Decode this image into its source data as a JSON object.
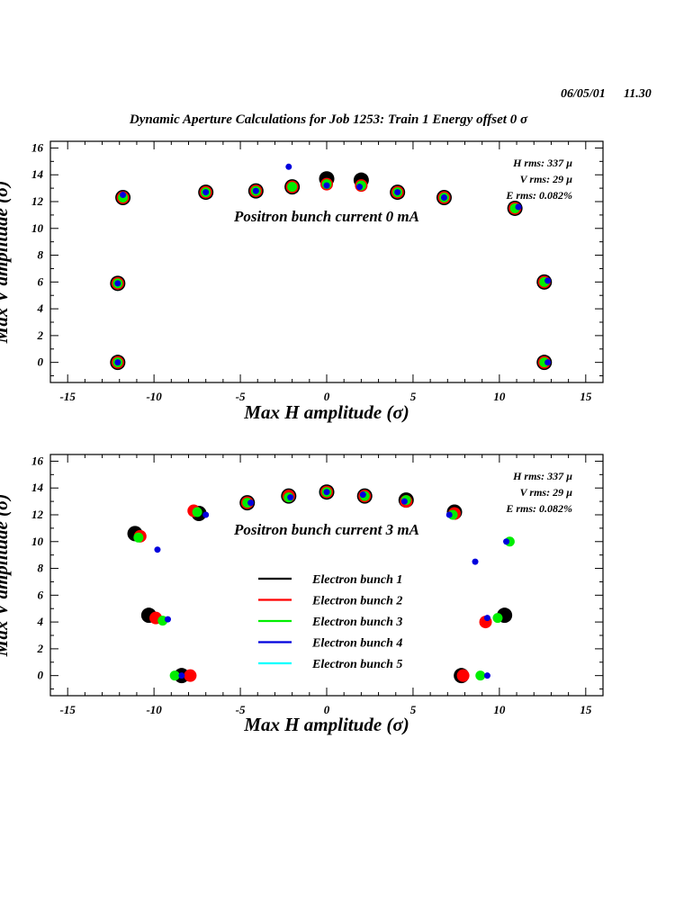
{
  "date": "06/05/01",
  "time": "11.30",
  "title": "Dynamic Aperture Calculations for Job 1253:  Train 1   Energy offset  0 σ",
  "colors": {
    "Electron bunch 1": "#000000",
    "Electron bunch 2": "#ff0000",
    "Electron bunch 3": "#00ee00",
    "Electron bunch 4": "#0000dd",
    "Electron bunch 5": "#00ffff"
  },
  "chart_data": [
    {
      "type": "scatter",
      "xlabel": "Max H amplitude (σ)",
      "ylabel": "Max V amplitude (σ)",
      "xlim": [
        -16,
        16
      ],
      "ylim": [
        -1.5,
        16.5
      ],
      "xticks": [
        -15,
        -10,
        -5,
        0,
        5,
        10,
        15
      ],
      "yticks": [
        0,
        2,
        4,
        6,
        8,
        10,
        12,
        14,
        16
      ],
      "info": [
        "H rms: 337 µ",
        "V rms: 29 µ",
        "E rms: 0.082%"
      ],
      "annotation": "Positron bunch current  0 mA",
      "series": [
        {
          "name": "Electron bunch 1",
          "points": [
            [
              -12.1,
              0
            ],
            [
              -12.1,
              5.9
            ],
            [
              -11.8,
              12.3
            ],
            [
              -7.0,
              12.7
            ],
            [
              -4.1,
              12.8
            ],
            [
              -2.0,
              13.1
            ],
            [
              0,
              13.7
            ],
            [
              2.0,
              13.6
            ],
            [
              4.1,
              12.7
            ],
            [
              6.8,
              12.3
            ],
            [
              10.9,
              11.5
            ],
            [
              12.6,
              6.0
            ],
            [
              12.6,
              0
            ]
          ]
        },
        {
          "name": "Electron bunch 2",
          "points": [
            [
              -12.1,
              0
            ],
            [
              -12.1,
              5.9
            ],
            [
              -11.8,
              12.3
            ],
            [
              -7.0,
              12.7
            ],
            [
              -4.1,
              12.8
            ],
            [
              -2.0,
              13.1
            ],
            [
              0,
              13.3
            ],
            [
              2.0,
              13.2
            ],
            [
              4.1,
              12.7
            ],
            [
              6.8,
              12.3
            ],
            [
              10.9,
              11.5
            ],
            [
              12.6,
              6.0
            ],
            [
              12.6,
              0
            ]
          ]
        },
        {
          "name": "Electron bunch 3",
          "points": [
            [
              -12.1,
              0
            ],
            [
              -12.1,
              5.9
            ],
            [
              -11.8,
              12.3
            ],
            [
              -7.0,
              12.7
            ],
            [
              -4.1,
              12.8
            ],
            [
              -2.0,
              13.1
            ],
            [
              0,
              13.3
            ],
            [
              2.0,
              13.2
            ],
            [
              4.1,
              12.7
            ],
            [
              6.8,
              12.3
            ],
            [
              10.9,
              11.5
            ],
            [
              12.6,
              6.0
            ],
            [
              12.6,
              0
            ]
          ]
        },
        {
          "name": "Electron bunch 4",
          "points": [
            [
              -12.1,
              0
            ],
            [
              -12.1,
              5.9
            ],
            [
              -11.8,
              12.5
            ],
            [
              -7.0,
              12.7
            ],
            [
              -4.1,
              12.8
            ],
            [
              -2.2,
              14.6
            ],
            [
              0,
              13.2
            ],
            [
              1.9,
              13.1
            ],
            [
              4.1,
              12.7
            ],
            [
              6.8,
              12.3
            ],
            [
              11.1,
              11.6
            ],
            [
              12.8,
              6.1
            ],
            [
              12.8,
              0
            ]
          ]
        }
      ]
    },
    {
      "type": "scatter",
      "xlabel": "Max H amplitude (σ)",
      "ylabel": "Max V amplitude (σ)",
      "xlim": [
        -16,
        16
      ],
      "ylim": [
        -1.5,
        16.5
      ],
      "xticks": [
        -15,
        -10,
        -5,
        0,
        5,
        10,
        15
      ],
      "yticks": [
        0,
        2,
        4,
        6,
        8,
        10,
        12,
        14,
        16
      ],
      "info": [
        "H rms: 337 µ",
        "V rms: 29 µ",
        "E rms: 0.082%"
      ],
      "annotation": "Positron bunch current  3 mA",
      "series": [
        {
          "name": "Electron bunch 1",
          "points": [
            [
              -8.4,
              0
            ],
            [
              -10.3,
              4.5
            ],
            [
              -11.1,
              10.6
            ],
            [
              -7.4,
              12.1
            ],
            [
              -4.6,
              12.9
            ],
            [
              -2.2,
              13.4
            ],
            [
              0,
              13.7
            ],
            [
              2.2,
              13.4
            ],
            [
              4.6,
              13.1
            ],
            [
              7.4,
              12.2
            ],
            [
              10.3,
              4.5
            ],
            [
              7.8,
              0
            ]
          ]
        },
        {
          "name": "Electron bunch 2",
          "points": [
            [
              -7.9,
              0
            ],
            [
              -9.9,
              4.3
            ],
            [
              -10.8,
              10.4
            ],
            [
              -7.7,
              12.3
            ],
            [
              -4.6,
              12.9
            ],
            [
              -2.2,
              13.4
            ],
            [
              0,
              13.7
            ],
            [
              2.2,
              13.4
            ],
            [
              4.6,
              13.0
            ],
            [
              7.4,
              12.1
            ],
            [
              9.2,
              4.0
            ],
            [
              7.9,
              0
            ]
          ]
        },
        {
          "name": "Electron bunch 3",
          "points": [
            [
              -8.8,
              0
            ],
            [
              -9.5,
              4.1
            ],
            [
              -10.9,
              10.3
            ],
            [
              -7.5,
              12.2
            ],
            [
              -4.6,
              12.9
            ],
            [
              -2.2,
              13.3
            ],
            [
              0,
              13.7
            ],
            [
              2.2,
              13.4
            ],
            [
              4.6,
              13.1
            ],
            [
              7.3,
              12.0
            ],
            [
              9.9,
              4.3
            ],
            [
              10.6,
              10.0
            ],
            [
              8.9,
              0
            ]
          ]
        },
        {
          "name": "Electron bunch 4",
          "points": [
            [
              -8.4,
              0
            ],
            [
              -9.2,
              4.2
            ],
            [
              -9.8,
              9.4
            ],
            [
              -7.0,
              12.0
            ],
            [
              -4.4,
              12.9
            ],
            [
              -2.1,
              13.3
            ],
            [
              0,
              13.7
            ],
            [
              2.1,
              13.5
            ],
            [
              4.5,
              13.0
            ],
            [
              7.1,
              12.0
            ],
            [
              8.6,
              8.5
            ],
            [
              9.3,
              4.3
            ],
            [
              10.4,
              10.0
            ],
            [
              9.3,
              0
            ]
          ]
        }
      ]
    }
  ]
}
